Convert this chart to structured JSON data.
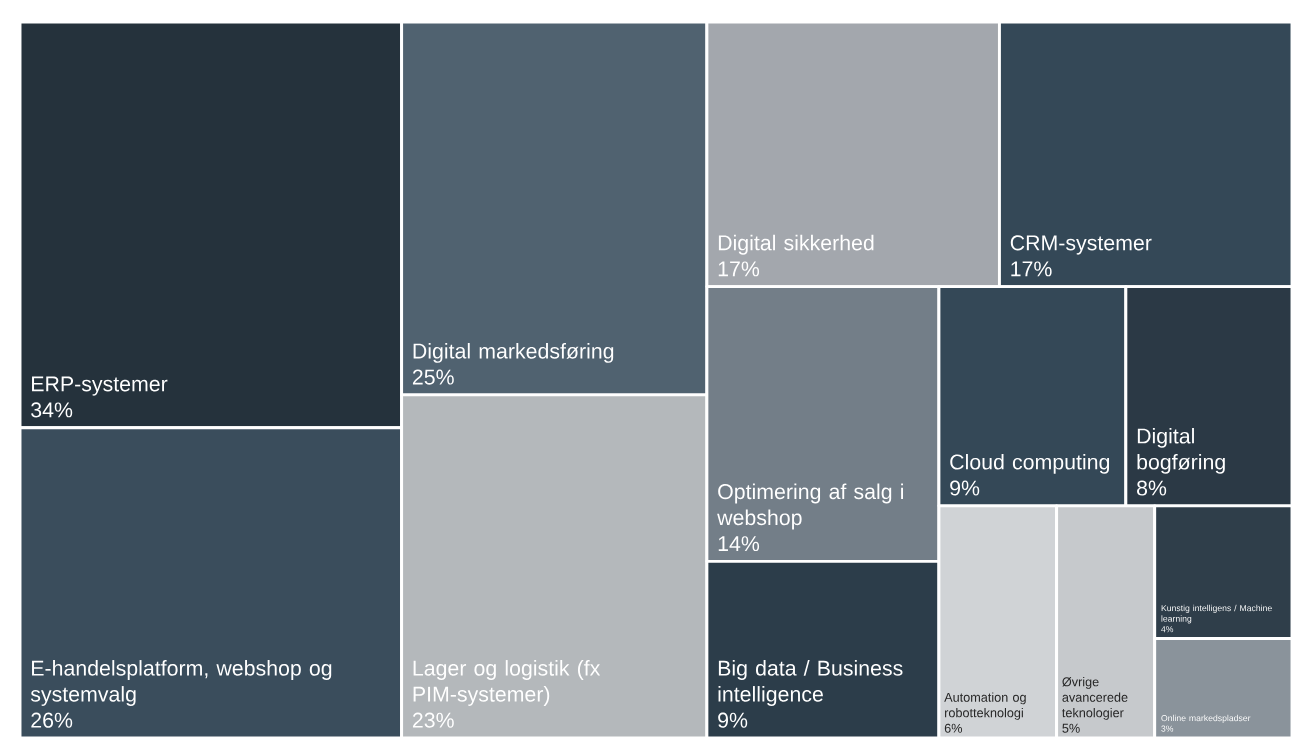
{
  "chart_data": {
    "type": "other",
    "categories": [
      "ERP-systemer",
      "E-handelsplatform, webshop og systemvalg",
      "Digital markedsføring",
      "Lager og logistik (fx PIM-systemer)",
      "Digital sikkerhed",
      "CRM-systemer",
      "Optimering af salg i webshop",
      "Big data / Business intelligence",
      "Cloud computing",
      "Digital bogføring",
      "Automation og robotteknologi",
      "Øvrige avancerede teknologier",
      "Kunstig intelligens / Machine learning",
      "Online markedspladser"
    ],
    "values": [
      34,
      26,
      25,
      23,
      17,
      17,
      14,
      9,
      9,
      8,
      6,
      5,
      4,
      3
    ],
    "value_labels": [
      "34%",
      "26%",
      "25%",
      "23%",
      "17%",
      "17%",
      "14%",
      "9%",
      "9%",
      "8%",
      "6%",
      "5%",
      "4%",
      "3%"
    ],
    "colors": [
      "#25323c",
      "#3a4d5c",
      "#506270",
      "#b4b8bb",
      "#a3a7ad",
      "#344857",
      "#737e88",
      "#2c3d4a",
      "#344857",
      "#2b3945",
      "#d0d3d6",
      "#c6c9cc",
      "#2f3e4a",
      "#8a939b"
    ]
  }
}
